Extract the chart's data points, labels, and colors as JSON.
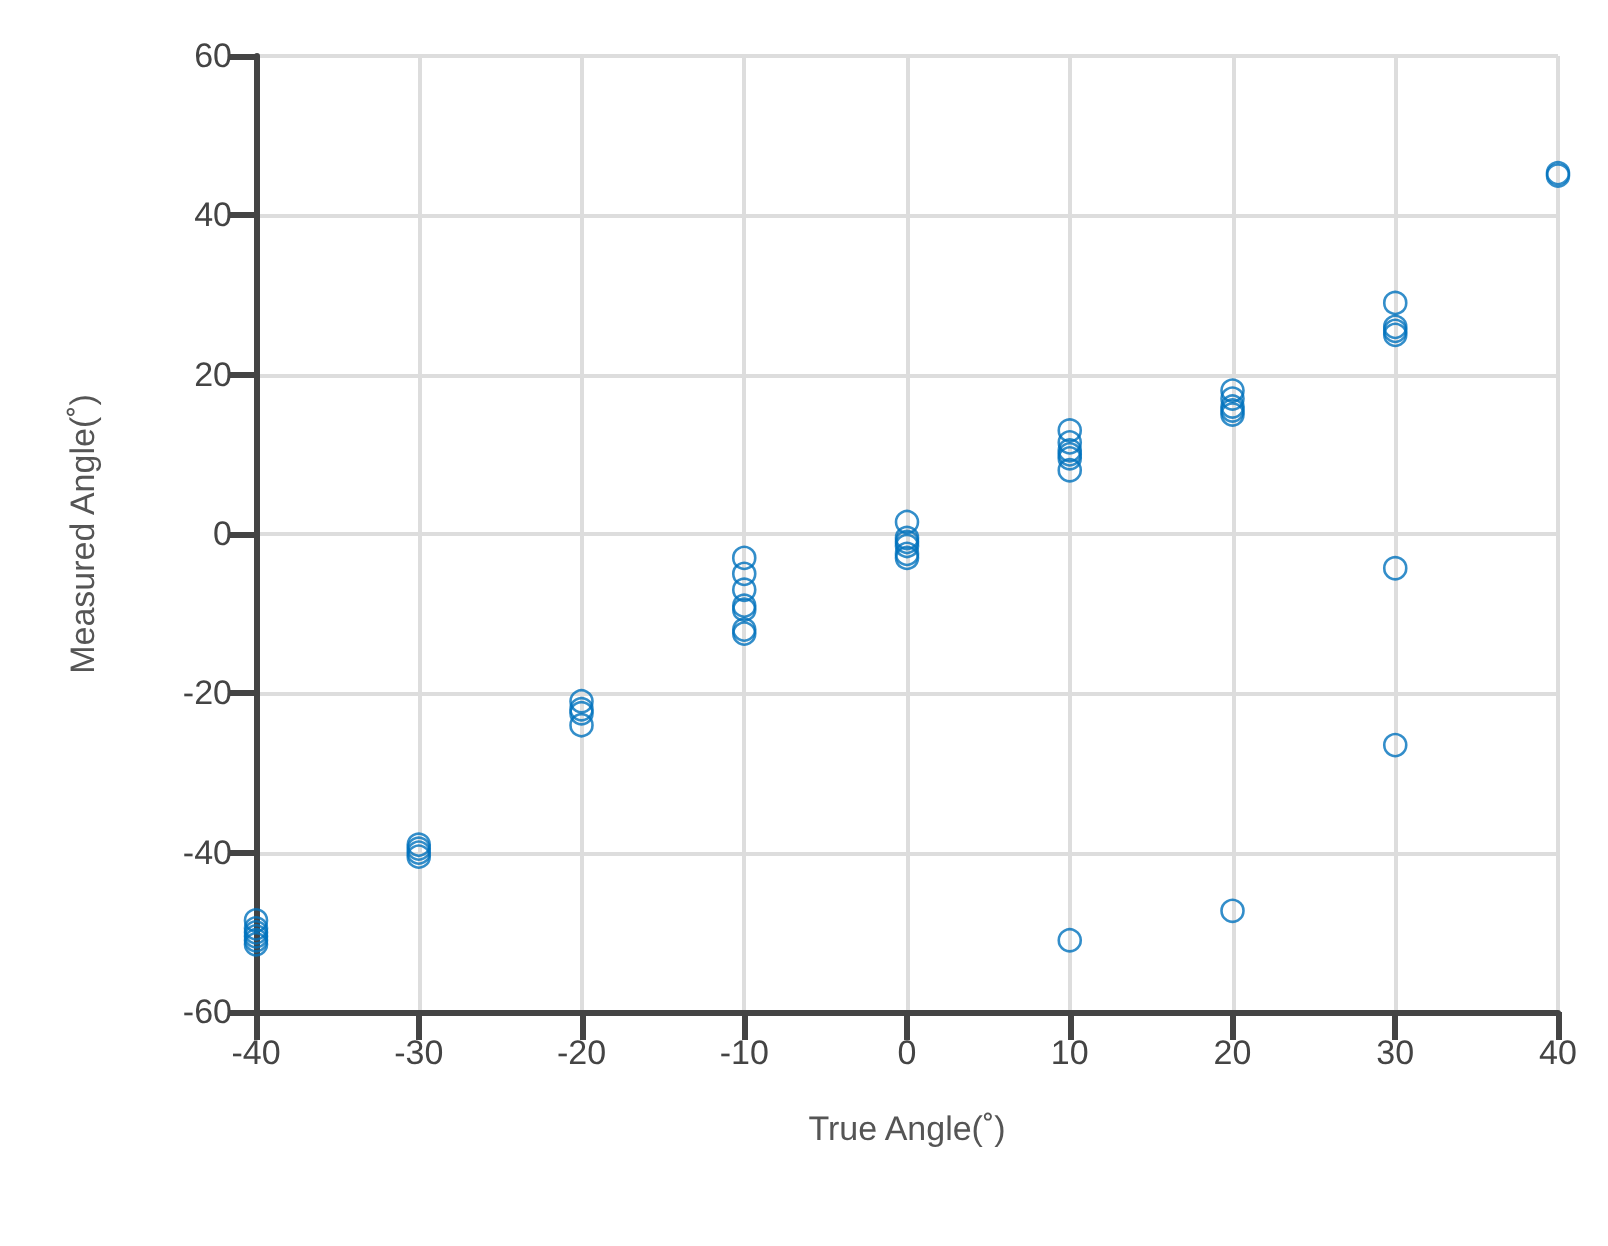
{
  "chart_data": {
    "type": "scatter",
    "xlabel": "True Angle(˚)",
    "ylabel": "Measured Angle(˚)",
    "xlim": [
      -40,
      40
    ],
    "ylim": [
      -60,
      60
    ],
    "xticks": [
      -40,
      -30,
      -20,
      -10,
      0,
      10,
      20,
      30,
      40
    ],
    "yticks": [
      -60,
      -40,
      -20,
      0,
      20,
      40,
      60
    ],
    "grid": true,
    "marker": "circle",
    "series": [
      {
        "color": "#0072bd",
        "x": [
          -40,
          -40,
          -40,
          -40,
          -40,
          -40,
          -30,
          -30,
          -30,
          -30,
          -20,
          -20,
          -20,
          -20,
          -10,
          -10,
          -10,
          -10,
          -10,
          -10,
          -10,
          0,
          0,
          0,
          0,
          0,
          0,
          10,
          10,
          10,
          10,
          10,
          10,
          10,
          20,
          20,
          20,
          20,
          20,
          20,
          30,
          30,
          30,
          30,
          30,
          30,
          40,
          40
        ],
        "values": [
          -48.5,
          -49.5,
          -50,
          -50.5,
          -51,
          -51.5,
          -39,
          -39.5,
          -40,
          -40.5,
          -21,
          -22,
          -22.5,
          -24,
          -3,
          -5,
          -7,
          -9,
          -9.5,
          -12,
          -12.5,
          1.5,
          -0.5,
          -1,
          -1.5,
          -2.5,
          -3,
          13,
          11.5,
          10.5,
          10,
          9.5,
          8,
          -51,
          18,
          17,
          16,
          15.5,
          15,
          -47.3,
          29,
          26,
          25.5,
          25,
          -4.3,
          -26.5,
          45,
          45.3
        ]
      }
    ]
  }
}
